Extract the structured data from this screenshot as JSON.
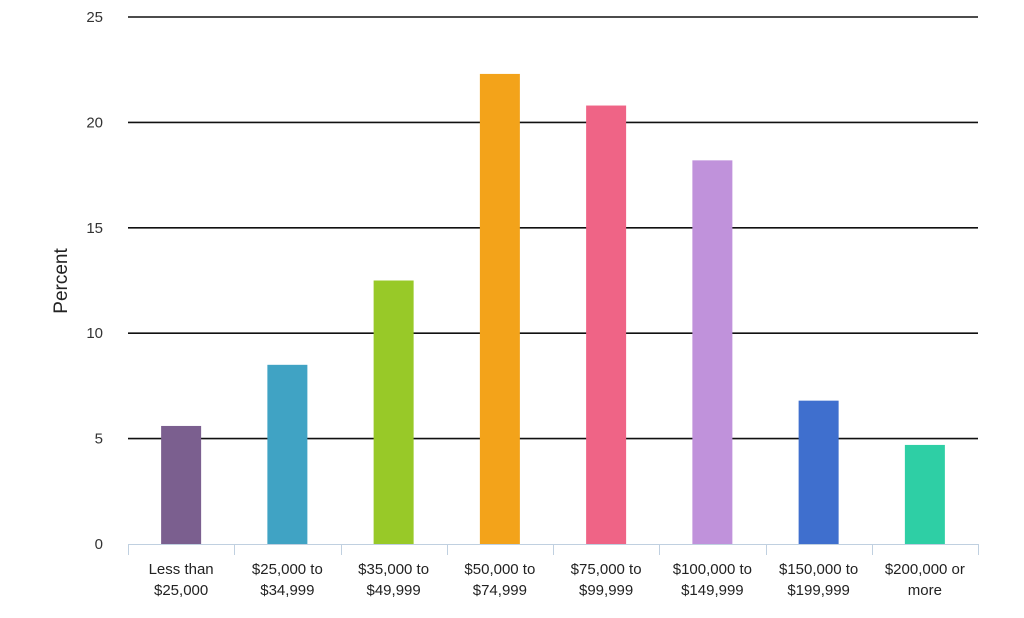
{
  "chart_data": {
    "type": "bar",
    "title": "",
    "xlabel": "",
    "ylabel": "Percent",
    "ylim": [
      0,
      25
    ],
    "yticks": [
      0,
      5,
      10,
      15,
      20,
      25
    ],
    "grid": true,
    "categories": [
      [
        "Less than",
        "$25,000"
      ],
      [
        "$25,000 to",
        "$34,999"
      ],
      [
        "$35,000 to",
        "$49,999"
      ],
      [
        "$50,000 to",
        "$74,999"
      ],
      [
        "$75,000 to",
        "$99,999"
      ],
      [
        "$100,000 to",
        "$149,999"
      ],
      [
        "$150,000 to",
        "$199,999"
      ],
      [
        "$200,000 or",
        "more"
      ]
    ],
    "values": [
      5.6,
      8.5,
      12.5,
      22.3,
      20.8,
      18.2,
      6.8,
      4.7
    ],
    "colors": [
      "#7b5f8f",
      "#40a3c4",
      "#98c928",
      "#f3a31a",
      "#ef6486",
      "#c092db",
      "#3f6fce",
      "#2ecfa5"
    ]
  }
}
